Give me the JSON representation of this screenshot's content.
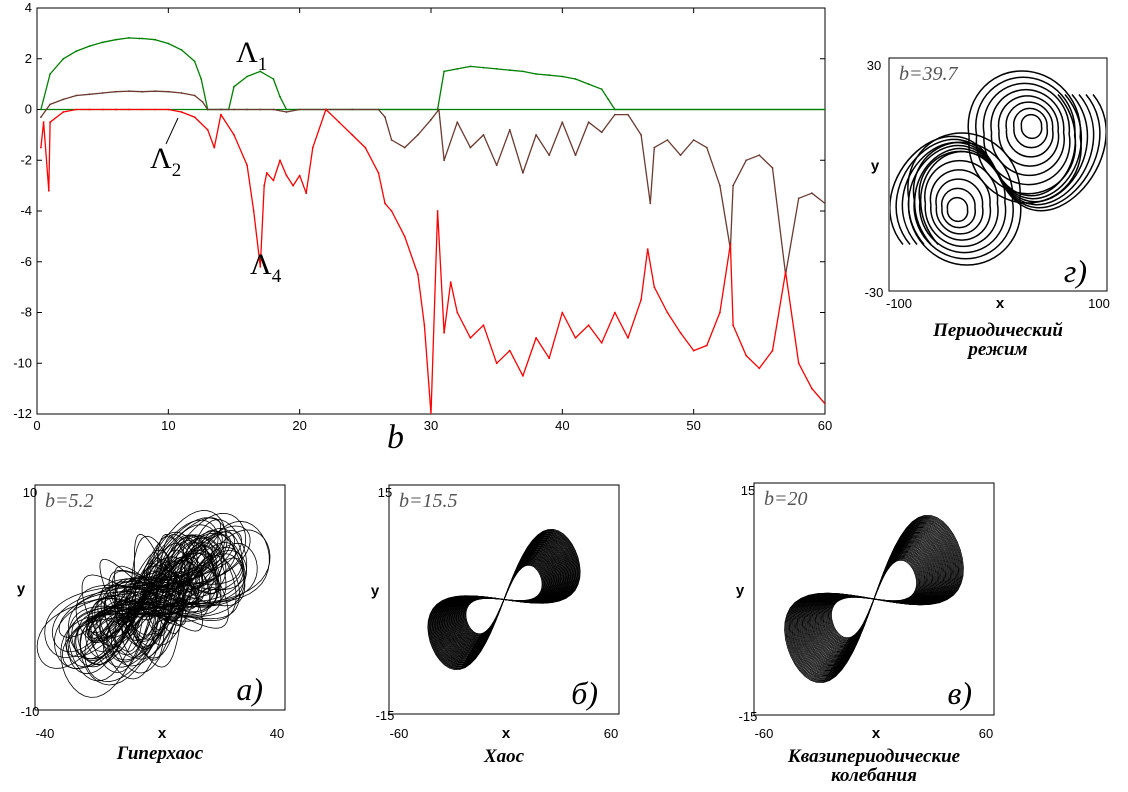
{
  "chart_data": [
    {
      "type": "line",
      "xlabel": "b",
      "xlim": [
        0,
        60
      ],
      "ylim": [
        -12,
        4
      ],
      "x_ticks": [
        "0",
        "10",
        "20",
        "30",
        "40",
        "50",
        "60"
      ],
      "y_ticks": [
        "4",
        "2",
        "0",
        "-2",
        "-4",
        "-6",
        "-8",
        "-10",
        "-12"
      ],
      "annotations": [
        {
          "base": "Λ",
          "sub": "1"
        },
        {
          "base": "Λ",
          "sub": "2"
        },
        {
          "base": "Λ",
          "sub": "4"
        }
      ],
      "colors": {
        "lambda1": "#008000",
        "lambda2": "#6b3a30",
        "lambda4": "#ff0000",
        "zero": "#008000"
      },
      "series": [
        {
          "key": "lambda1",
          "x": [
            0.3,
            1,
            2,
            3,
            4,
            5,
            6,
            7,
            7.8,
            8,
            9,
            10,
            11,
            12,
            12.5,
            13,
            14,
            14.6,
            15,
            16,
            17,
            18,
            18.5,
            19,
            30.5,
            31,
            32,
            33,
            34,
            35,
            36,
            37,
            38,
            39,
            40,
            41,
            42,
            43,
            43.5,
            44,
            60
          ],
          "y": [
            0,
            1.4,
            2.0,
            2.3,
            2.5,
            2.65,
            2.75,
            2.82,
            2.8,
            2.8,
            2.75,
            2.6,
            2.35,
            1.9,
            1.2,
            0,
            0,
            0,
            0.9,
            1.3,
            1.5,
            1.2,
            0.5,
            0,
            0,
            1.5,
            1.6,
            1.7,
            1.65,
            1.6,
            1.55,
            1.5,
            1.4,
            1.35,
            1.3,
            1.2,
            1.0,
            0.8,
            0.4,
            0,
            0
          ]
        },
        {
          "key": "lambda2",
          "x": [
            0.3,
            1,
            2,
            3,
            4,
            5,
            6,
            7,
            8,
            9,
            10,
            11,
            12,
            12.6,
            13,
            14,
            15,
            16,
            17,
            18,
            19,
            20,
            22,
            24,
            26,
            26.5,
            27,
            28,
            29,
            30,
            30.6,
            31,
            32,
            33,
            34,
            35,
            36,
            37,
            38,
            39,
            40,
            41,
            42,
            43,
            44,
            45,
            46,
            46.7,
            47,
            48,
            49,
            50,
            51,
            52,
            52.8,
            53,
            54,
            55,
            56,
            57,
            58,
            59,
            60
          ],
          "y": [
            -0.3,
            0.2,
            0.4,
            0.55,
            0.6,
            0.65,
            0.7,
            0.72,
            0.7,
            0.72,
            0.7,
            0.65,
            0.55,
            0.3,
            0,
            0,
            0,
            0,
            0,
            0,
            -0.1,
            0,
            0,
            0,
            0,
            -0.3,
            -1.2,
            -1.5,
            -1.0,
            -0.4,
            0,
            -2.0,
            -0.5,
            -1.5,
            -1.0,
            -2.2,
            -0.8,
            -2.5,
            -1.0,
            -1.8,
            -0.5,
            -1.8,
            -0.5,
            -0.9,
            -0.2,
            -0.2,
            -1.0,
            -3.7,
            -1.5,
            -1.2,
            -1.8,
            -1.2,
            -1.5,
            -3.0,
            -5.5,
            -3.0,
            -2.0,
            -1.8,
            -2.3,
            -6.5,
            -3.5,
            -3.3,
            -3.7
          ]
        },
        {
          "key": "lambda4",
          "x": [
            0.3,
            0.5,
            0.9,
            1,
            2,
            3,
            4,
            5,
            6,
            7,
            8,
            9,
            10,
            11,
            12,
            13,
            13.5,
            14,
            15,
            16,
            16.5,
            17,
            17.3,
            17.5,
            18,
            18.5,
            19,
            19.5,
            20,
            20.5,
            21,
            22,
            23,
            24,
            25,
            26,
            26.5,
            27,
            28,
            29,
            29.5,
            30,
            30.5,
            31,
            31.5,
            32,
            33,
            34,
            35,
            36,
            37,
            38,
            39,
            40,
            41,
            42,
            43,
            44,
            45,
            46,
            46.5,
            47,
            48,
            49,
            50,
            51,
            52,
            52.8,
            53,
            54,
            55,
            56,
            57,
            58,
            59,
            60
          ],
          "y": [
            -1.5,
            -0.5,
            -3.2,
            -0.5,
            -0.1,
            0,
            0,
            0,
            0,
            0,
            0,
            0,
            0,
            -0.1,
            -0.3,
            -0.8,
            -1.5,
            -0.2,
            -1.0,
            -2.2,
            -4.0,
            -6.2,
            -3.0,
            -2.5,
            -2.8,
            -2.0,
            -2.6,
            -3.0,
            -2.6,
            -3.3,
            -1.5,
            0,
            -0.5,
            -1.0,
            -1.5,
            -2.5,
            -3.7,
            -4.0,
            -5.0,
            -6.5,
            -8.5,
            -12,
            -4.0,
            -8.8,
            -6.8,
            -8.0,
            -9.0,
            -8.5,
            -10.0,
            -9.5,
            -10.5,
            -9.0,
            -9.8,
            -8.0,
            -9.0,
            -8.5,
            -9.2,
            -8.0,
            -9.0,
            -7.5,
            -5.5,
            -7.0,
            -8.0,
            -8.8,
            -9.5,
            -9.3,
            -8.0,
            -5.3,
            -8.5,
            -9.7,
            -10.2,
            -9.5,
            -6.4,
            -10.0,
            -11.0,
            -11.6
          ]
        }
      ]
    },
    {
      "type": "scatter",
      "title": "b=5.2",
      "xlabel": "x",
      "ylabel": "y",
      "xlim": [
        -40,
        40
      ],
      "ylim": [
        -10,
        10
      ],
      "x_ticks": [
        "-40",
        "40"
      ],
      "y_ticks": [
        "10",
        "-10"
      ],
      "panel_label": "а)",
      "caption": [
        "Гиперхаос"
      ]
    },
    {
      "type": "scatter",
      "title": "b=15.5",
      "xlabel": "x",
      "ylabel": "y",
      "xlim": [
        -60,
        60
      ],
      "ylim": [
        -15,
        15
      ],
      "x_ticks": [
        "-60",
        "60"
      ],
      "y_ticks": [
        "15",
        "-15"
      ],
      "panel_label": "б)",
      "caption": [
        "Хаос"
      ]
    },
    {
      "type": "scatter",
      "title": "b=20",
      "xlabel": "x",
      "ylabel": "y",
      "xlim": [
        -60,
        60
      ],
      "ylim": [
        -15,
        15
      ],
      "x_ticks": [
        "-60",
        "60"
      ],
      "y_ticks": [
        "15",
        "-15"
      ],
      "panel_label": "в)",
      "caption": [
        "Квазипериодические",
        "колебания"
      ]
    },
    {
      "type": "scatter",
      "title": "b=39.7",
      "xlabel": "x",
      "ylabel": "y",
      "xlim": [
        -100,
        100
      ],
      "ylim": [
        -30,
        30
      ],
      "x_ticks": [
        "-100",
        "100"
      ],
      "y_ticks": [
        "30",
        "-30"
      ],
      "panel_label": "г)",
      "caption": [
        "Периодический",
        "режим"
      ]
    }
  ]
}
